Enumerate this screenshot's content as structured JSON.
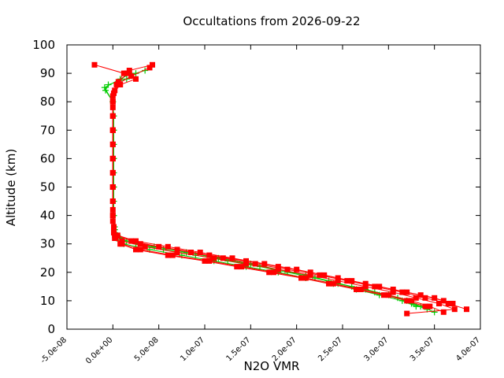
{
  "chart_data": {
    "type": "scatter",
    "title": "Occultations from 2026-09-22",
    "xlabel": "N2O VMR",
    "ylabel": "Altitude (km)",
    "xlim": [
      -5e-08,
      4e-07
    ],
    "ylim": [
      0,
      100
    ],
    "xticks": [
      -5e-08,
      0,
      5e-08,
      1e-07,
      1.5e-07,
      2e-07,
      2.5e-07,
      3e-07,
      3.5e-07,
      4e-07
    ],
    "xtick_labels": [
      "-5.0e-08",
      "0.0e+00",
      "5.0e-08",
      "1.0e-07",
      "1.5e-07",
      "2.0e-07",
      "2.5e-07",
      "3.0e-07",
      "3.5e-07",
      "4.0e-07"
    ],
    "yticks": [
      0,
      10,
      20,
      30,
      40,
      50,
      60,
      70,
      80,
      90,
      100
    ],
    "ytick_labels": [
      "0",
      "10",
      "20",
      "30",
      "40",
      "50",
      "60",
      "70",
      "80",
      "90",
      "100"
    ],
    "grid": false,
    "legend": "none",
    "series": [
      {
        "color": "#00cc00",
        "marker": "plus",
        "points": [
          [
            0,
            5.5e-09
          ],
          [
            0,
            1.5e-09
          ],
          [
            -2e-09,
            -9e-09
          ],
          [
            -2e-09,
            -8e-09
          ],
          [
            0,
            4e-09
          ]
        ],
        "profiles": [
          {
            "alt": [
              7,
              9,
              11,
              13,
              15,
              17,
              19,
              21,
              23,
              25,
              27,
              29,
              31,
              33,
              36,
              40,
              45,
              50,
              55,
              60,
              65,
              70,
              75,
              80,
              84,
              86,
              88,
              90,
              91
            ],
            "vmr": [
              3.42e-07,
              3.25e-07,
              3.1e-07,
              2.85e-07,
              2.6e-07,
              2.35e-07,
              2.1e-07,
              1.8e-07,
              1.5e-07,
              1.15e-07,
              8e-08,
              4.5e-08,
              1.5e-08,
              5e-09,
              2e-09,
              1e-09,
              1e-09,
              1e-09,
              1e-09,
              1e-09,
              1e-09,
              1e-09,
              1e-09,
              0,
              -8e-09,
              -5e-09,
              1.5e-08,
              2.5e-08,
              3.5e-08
            ]
          },
          {
            "alt": [
              6,
              8,
              10,
              12,
              14,
              16,
              18,
              20,
              22,
              24,
              26,
              28,
              30,
              32,
              35,
              40,
              50,
              60,
              70,
              80,
              85,
              88,
              90
            ],
            "vmr": [
              3.5e-07,
              3.35e-07,
              3.2e-07,
              3e-07,
              2.75e-07,
              2.45e-07,
              2.2e-07,
              1.9e-07,
              1.6e-07,
              1.25e-07,
              9e-08,
              5.5e-08,
              2.5e-08,
              8e-09,
              2e-09,
              1e-09,
              1e-09,
              1e-09,
              1e-09,
              0,
              -9e-09,
              8e-09,
              2e-08
            ]
          },
          {
            "alt": [
              8,
              10,
              12,
              14,
              16,
              18,
              20,
              22,
              24,
              26,
              28,
              30,
              32,
              35
            ],
            "vmr": [
              3.3e-07,
              3.15e-07,
              2.9e-07,
              2.65e-07,
              2.4e-07,
              2.1e-07,
              1.8e-07,
              1.45e-07,
              1.1e-07,
              7.5e-08,
              4e-08,
              1.2e-08,
              4e-09,
              2e-09
            ]
          }
        ]
      },
      {
        "color": "#ff0000",
        "marker": "square",
        "profiles": [
          {
            "alt": [
              5.5,
              7,
              9,
              11,
              13,
              15,
              17,
              19,
              21,
              23,
              25,
              27,
              29,
              31,
              33,
              35,
              40,
              45,
              50,
              55,
              60,
              65,
              70,
              75,
              80,
              84,
              87,
              90,
              93
            ],
            "vmr": [
              3.2e-07,
              3.72e-07,
              3.55e-07,
              3.3e-07,
              3.05e-07,
              2.75e-07,
              2.45e-07,
              2.15e-07,
              1.8e-07,
              1.45e-07,
              1.1e-07,
              7e-08,
              3.5e-08,
              1e-08,
              2e-09,
              1e-09,
              0,
              0,
              0,
              0,
              0,
              0,
              0,
              0,
              0,
              2e-09,
              6e-09,
              1.2e-08,
              -2e-08
            ]
          },
          {
            "alt": [
              6,
              8,
              10,
              12,
              14,
              16,
              18,
              20,
              22,
              24,
              26,
              28,
              30,
              32,
              34,
              38,
              45,
              55,
              65,
              75,
              82,
              86,
              89,
              92
            ],
            "vmr": [
              3.6e-07,
              3.45e-07,
              3.25e-07,
              3e-07,
              2.7e-07,
              2.4e-07,
              2.1e-07,
              1.75e-07,
              1.4e-07,
              1.05e-07,
              6.5e-08,
              3e-08,
              1e-08,
              3e-09,
              1e-09,
              0,
              0,
              0,
              0,
              0,
              0,
              4e-09,
              2e-08,
              4e-08
            ]
          },
          {
            "alt": [
              7,
              9,
              11,
              13,
              15,
              17,
              19,
              21,
              23,
              25,
              27,
              29,
              31,
              33,
              36,
              42,
              50,
              60,
              70,
              78,
              83,
              86,
              88,
              91,
              93
            ],
            "vmr": [
              3.85e-07,
              3.65e-07,
              3.4e-07,
              3.15e-07,
              2.85e-07,
              2.55e-07,
              2.25e-07,
              1.9e-07,
              1.55e-07,
              1.2e-07,
              8.5e-08,
              5e-08,
              2e-08,
              5e-09,
              1e-09,
              0,
              0,
              0,
              0,
              0,
              1e-09,
              8e-09,
              2.5e-08,
              1.8e-08,
              4.3e-08
            ]
          },
          {
            "alt": [
              8,
              10,
              12,
              14,
              16,
              18,
              20,
              22,
              24,
              26,
              28,
              30,
              32,
              34,
              40,
              50,
              60,
              70,
              80,
              86,
              90
            ],
            "vmr": [
              3.4e-07,
              3.2e-07,
              2.95e-07,
              2.65e-07,
              2.35e-07,
              2.05e-07,
              1.7e-07,
              1.35e-07,
              1e-07,
              6e-08,
              2.5e-08,
              8e-09,
              2e-09,
              1e-09,
              0,
              0,
              0,
              0,
              0,
              5e-09,
              1.5e-08
            ]
          },
          {
            "alt": [
              9,
              11,
              13,
              15,
              17,
              19,
              21,
              23,
              25,
              27,
              29,
              31,
              33
            ],
            "vmr": [
              3.7e-07,
              3.5e-07,
              3.2e-07,
              2.9e-07,
              2.6e-07,
              2.3e-07,
              2e-07,
              1.65e-07,
              1.3e-07,
              9.5e-08,
              6e-08,
              2.5e-08,
              5e-09
            ]
          },
          {
            "alt": [
              10,
              12,
              14,
              16,
              18,
              20,
              22,
              24,
              26,
              28,
              30
            ],
            "vmr": [
              3.6e-07,
              3.35e-07,
              3.05e-07,
              2.75e-07,
              2.45e-07,
              2.15e-07,
              1.8e-07,
              1.45e-07,
              1.05e-07,
              7e-08,
              3e-08
            ]
          }
        ]
      }
    ]
  }
}
